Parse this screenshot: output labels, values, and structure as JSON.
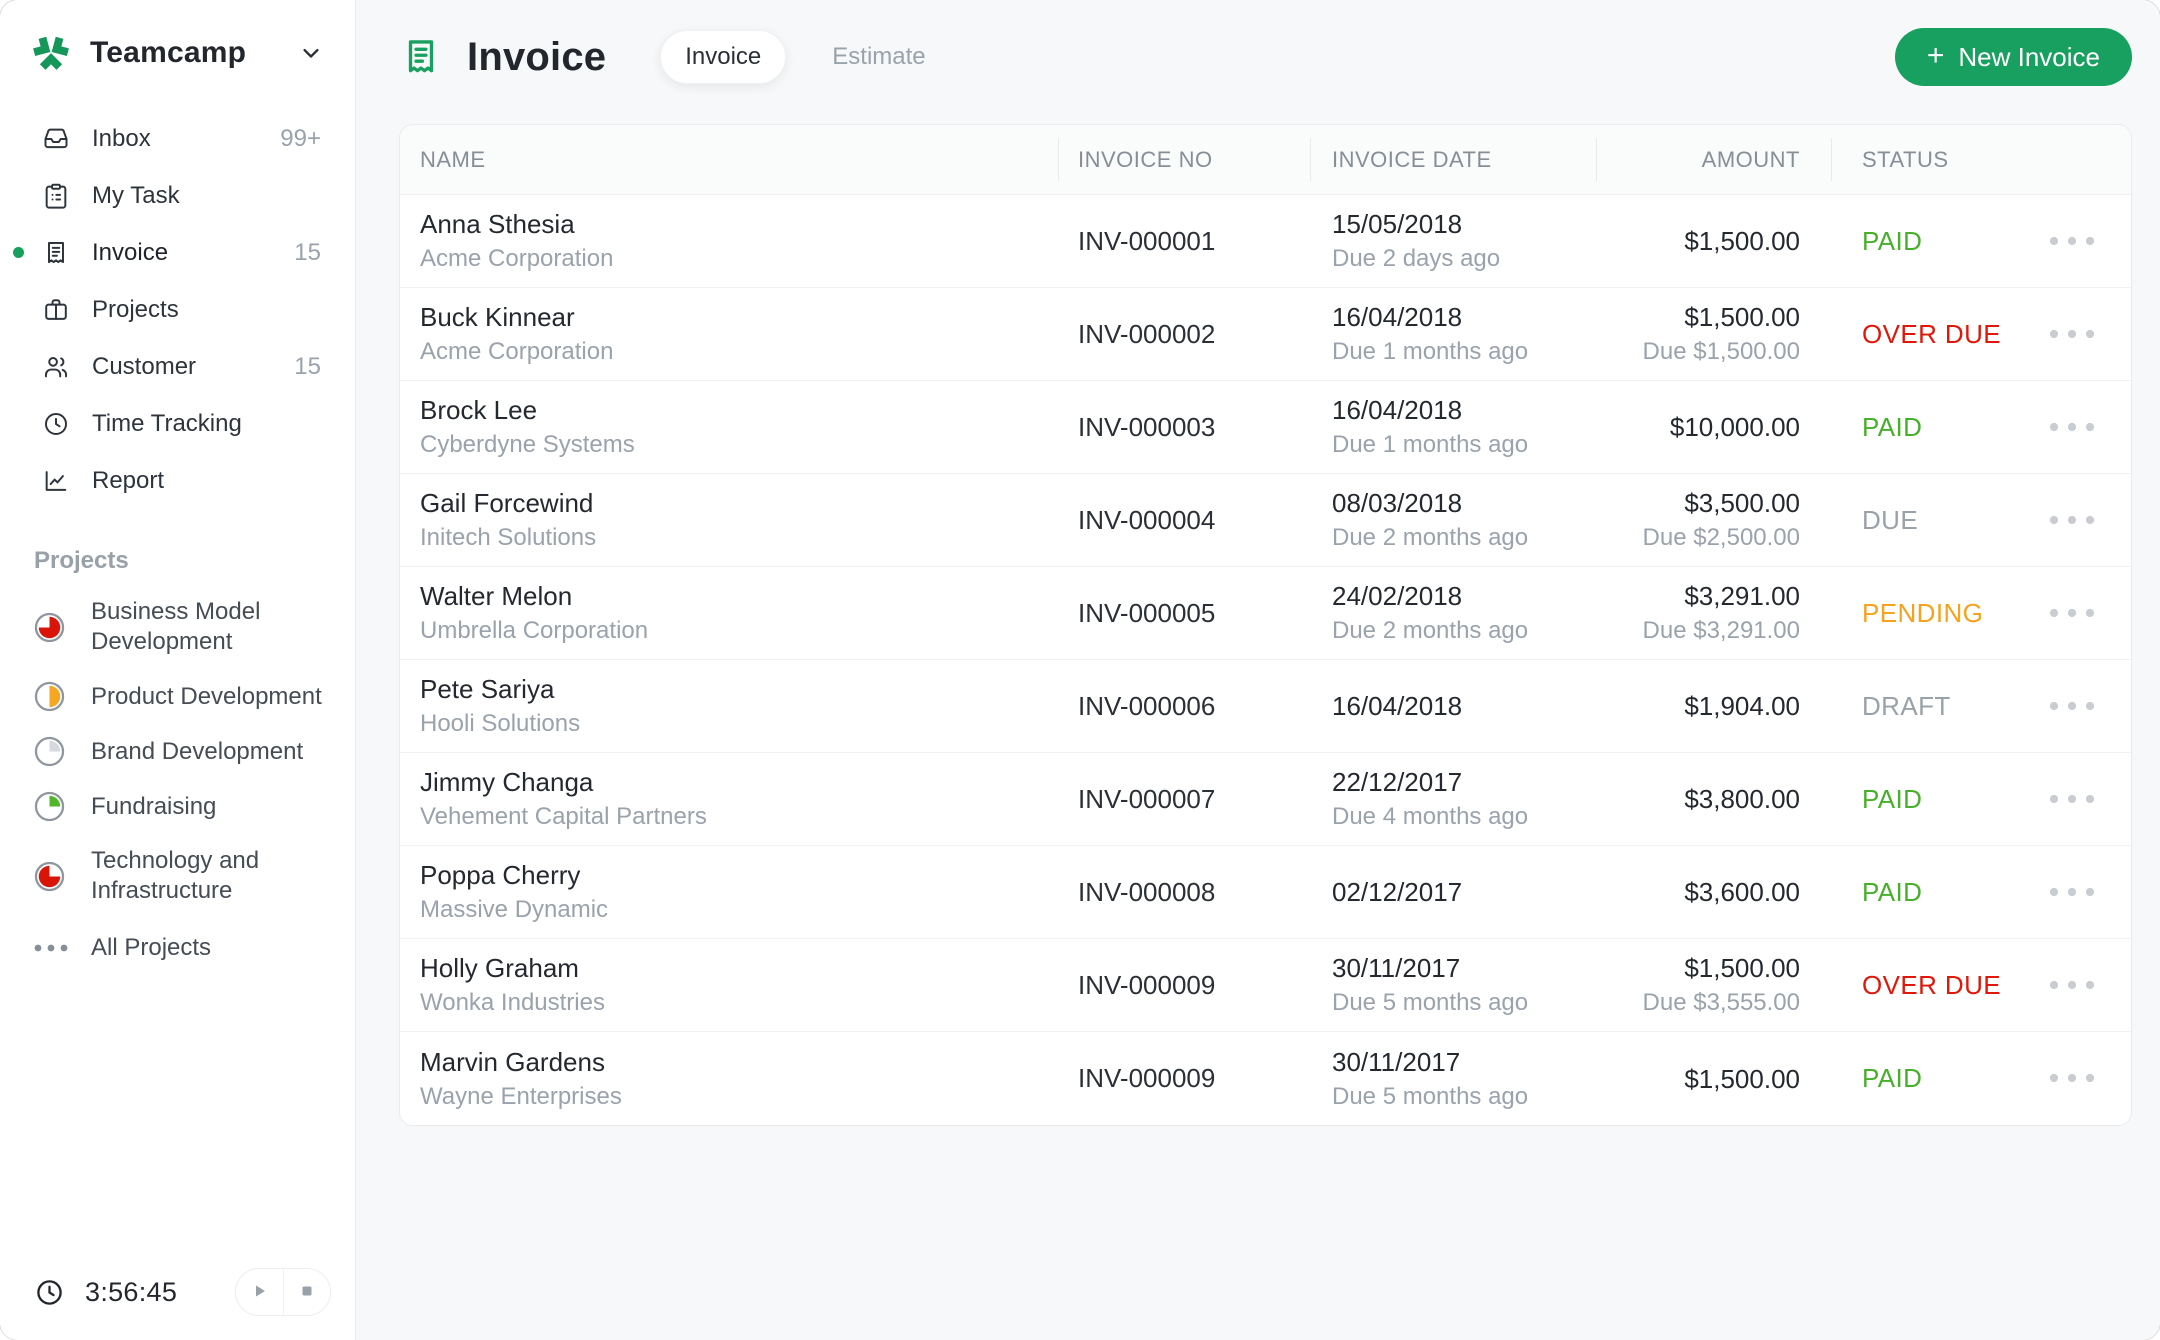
{
  "window": {
    "app_name": "Teamcamp"
  },
  "colors": {
    "accent_green": "#18a060",
    "logo_green": "#16975a",
    "status_paid": "#47b02a",
    "status_overdue": "#e0180a",
    "status_pending": "#f6a21c",
    "status_due": "#99a1a9",
    "status_draft": "#99a1a9"
  },
  "sidebar": {
    "logo_label": "Teamcamp",
    "nav_items": [
      {
        "label": "Inbox",
        "icon": "inbox",
        "count": "99+",
        "active": false
      },
      {
        "label": "My Task",
        "icon": "task",
        "count": "",
        "active": false
      },
      {
        "label": "Invoice",
        "icon": "invoice",
        "count": "15",
        "active": true
      },
      {
        "label": "Projects",
        "icon": "briefcase",
        "count": "",
        "active": false
      },
      {
        "label": "Customer",
        "icon": "users",
        "count": "15",
        "active": false
      },
      {
        "label": "Time Tracking",
        "icon": "clock",
        "count": "",
        "active": false
      },
      {
        "label": "Report",
        "icon": "chart",
        "count": "",
        "active": false
      }
    ],
    "projects_header": "Projects",
    "projects": [
      {
        "label": "Business Model Development",
        "pie_color": "#d91408",
        "pie_start": 0,
        "pie_sweep": 270
      },
      {
        "label": "Product Development",
        "pie_color": "#f5a623",
        "pie_start": 0,
        "pie_sweep": 180
      },
      {
        "label": "Brand Development",
        "pie_color": "#d6dade",
        "pie_start": 0,
        "pie_sweep": 90
      },
      {
        "label": "Fundraising",
        "pie_color": "#52b62a",
        "pie_start": 0,
        "pie_sweep": 90
      },
      {
        "label": "Technology and Infrastructure",
        "pie_color": "#d91408",
        "pie_start": 90,
        "pie_sweep": 270
      }
    ],
    "all_projects_label": "All Projects",
    "timer": {
      "time": "3:56:45"
    }
  },
  "header": {
    "title": "Invoice",
    "tabs": [
      {
        "label": "Invoice",
        "active": true
      },
      {
        "label": "Estimate",
        "active": false
      }
    ],
    "new_invoice_plus": "+",
    "new_invoice_label": "New Invoice"
  },
  "table": {
    "columns": [
      "NAME",
      "INVOICE NO",
      "INVOICE DATE",
      "AMOUNT",
      "STATUS"
    ],
    "rows": [
      {
        "name": "Anna Sthesia",
        "company": "Acme Corporation",
        "invoice_no": "INV-000001",
        "date": "15/05/2018",
        "date_sub": "Due 2 days ago",
        "amount": "$1,500.00",
        "amount_sub": "",
        "status": "PAID"
      },
      {
        "name": "Buck Kinnear",
        "company": "Acme Corporation",
        "invoice_no": "INV-000002",
        "date": "16/04/2018",
        "date_sub": "Due 1 months ago",
        "amount": "$1,500.00",
        "amount_sub": "Due $1,500.00",
        "status": "OVER DUE"
      },
      {
        "name": "Brock Lee",
        "company": "Cyberdyne Systems",
        "invoice_no": "INV-000003",
        "date": "16/04/2018",
        "date_sub": "Due 1 months ago",
        "amount": "$10,000.00",
        "amount_sub": "",
        "status": "PAID"
      },
      {
        "name": "Gail Forcewind",
        "company": "Initech Solutions",
        "invoice_no": "INV-000004",
        "date": "08/03/2018",
        "date_sub": "Due 2 months ago",
        "amount": "$3,500.00",
        "amount_sub": "Due $2,500.00",
        "status": "DUE"
      },
      {
        "name": "Walter Melon",
        "company": "Umbrella Corporation",
        "invoice_no": "INV-000005",
        "date": "24/02/2018",
        "date_sub": "Due 2 months ago",
        "amount": "$3,291.00",
        "amount_sub": "Due $3,291.00",
        "status": "PENDING"
      },
      {
        "name": "Pete Sariya",
        "company": "Hooli Solutions",
        "invoice_no": "INV-000006",
        "date": "16/04/2018",
        "date_sub": "",
        "amount": "$1,904.00",
        "amount_sub": "",
        "status": "DRAFT"
      },
      {
        "name": "Jimmy Changa",
        "company": "Vehement Capital Partners",
        "invoice_no": "INV-000007",
        "date": "22/12/2017",
        "date_sub": "Due 4 months ago",
        "amount": "$3,800.00",
        "amount_sub": "",
        "status": "PAID"
      },
      {
        "name": "Poppa Cherry",
        "company": "Massive Dynamic",
        "invoice_no": "INV-000008",
        "date": "02/12/2017",
        "date_sub": "",
        "amount": "$3,600.00",
        "amount_sub": "",
        "status": "PAID"
      },
      {
        "name": "Holly Graham",
        "company": "Wonka Industries",
        "invoice_no": "INV-000009",
        "date": "30/11/2017",
        "date_sub": "Due 5 months ago",
        "amount": "$1,500.00",
        "amount_sub": "Due $3,555.00",
        "status": "OVER DUE"
      },
      {
        "name": "Marvin Gardens",
        "company": "Wayne Enterprises",
        "invoice_no": "INV-000009",
        "date": "30/11/2017",
        "date_sub": "Due 5 months ago",
        "amount": "$1,500.00",
        "amount_sub": "",
        "status": "PAID"
      }
    ]
  },
  "status_colors": {
    "PAID": "#47b02a",
    "OVER DUE": "#e0180a",
    "PENDING": "#f6a21c",
    "DUE": "#99a1a9",
    "DRAFT": "#99a1a9"
  }
}
